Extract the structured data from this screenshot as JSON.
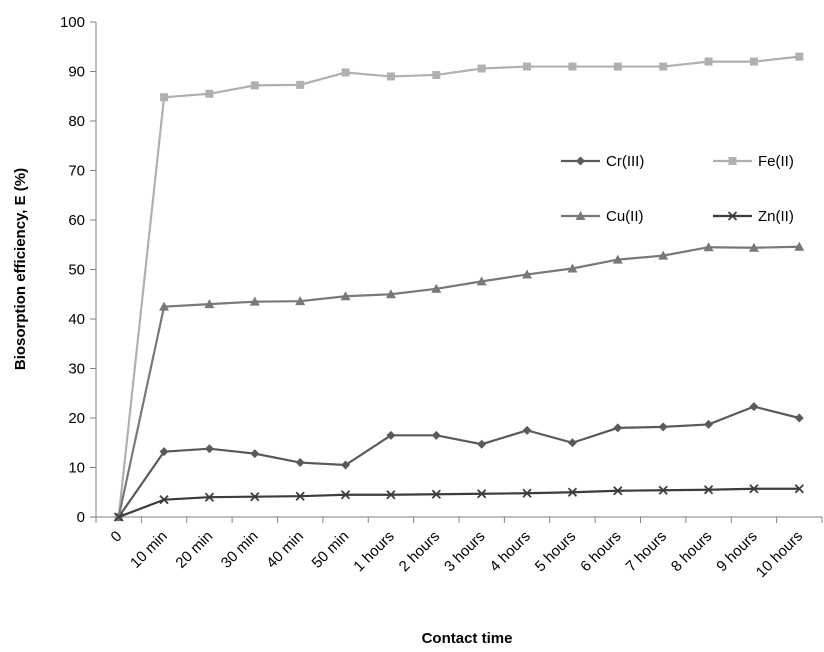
{
  "chart_data": {
    "type": "line",
    "xlabel": "Contact time",
    "ylabel": "Biosorption efficiency, E (%)",
    "ylim": [
      0,
      100
    ],
    "yticks": [
      "0",
      "10",
      "20",
      "30",
      "40",
      "50",
      "60",
      "70",
      "80",
      "90",
      "100"
    ],
    "categories": [
      "0",
      "10 min",
      "20 min",
      "30 min",
      "40 min",
      "50 min",
      "1 hours",
      "2 hours",
      "3 hours",
      "4 hours",
      "5 hours",
      "6 hours",
      "7 hours",
      "8 hours",
      "9 hours",
      "10 hours"
    ],
    "grid": false,
    "legend_position": "right-middle",
    "series": [
      {
        "name": "Cr(III)",
        "color": "#5a5a5a",
        "marker": "diamond",
        "values": [
          0,
          13.2,
          13.8,
          12.8,
          11.0,
          10.5,
          16.5,
          16.5,
          14.7,
          17.5,
          15.0,
          18.0,
          18.2,
          18.7,
          22.3,
          20.0
        ]
      },
      {
        "name": "Fe(II)",
        "color": "#b0b0b0",
        "marker": "square",
        "values": [
          0,
          84.8,
          85.5,
          87.2,
          87.3,
          89.8,
          89.0,
          89.3,
          90.6,
          91.0,
          91.0,
          91.0,
          91.0,
          92.0,
          92.0,
          93.0
        ]
      },
      {
        "name": "Cu(II)",
        "color": "#787878",
        "marker": "triangle",
        "values": [
          0,
          42.5,
          43.0,
          43.5,
          43.6,
          44.6,
          45.0,
          46.1,
          47.6,
          49.0,
          50.2,
          52.0,
          52.8,
          54.5,
          54.4,
          54.6
        ]
      },
      {
        "name": "Zn(II)",
        "color": "#3c3c3c",
        "marker": "x",
        "values": [
          0,
          3.5,
          4.0,
          4.1,
          4.2,
          4.5,
          4.5,
          4.6,
          4.7,
          4.8,
          5.0,
          5.3,
          5.4,
          5.5,
          5.7,
          5.7
        ]
      }
    ]
  }
}
